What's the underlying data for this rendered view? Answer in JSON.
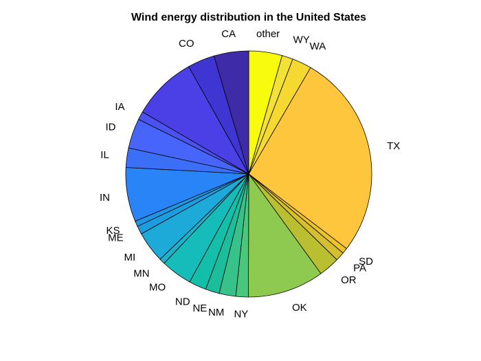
{
  "chart_data": {
    "type": "pie",
    "title": "Wind energy distribution in the United States",
    "legend": "none",
    "slices": [
      {
        "label": "other",
        "value": 4.8,
        "color": "#F9FB0E"
      },
      {
        "label": "WY",
        "value": 1.6,
        "color": "#F3E137"
      },
      {
        "label": "WA",
        "value": 2.8,
        "color": "#F5D930"
      },
      {
        "label": "TX",
        "value": 29.6,
        "color": "#FEC63C"
      },
      {
        "label": "SD",
        "value": 0.8,
        "color": "#EDC22B"
      },
      {
        "label": "PA",
        "value": 1.3,
        "color": "#D5BF30"
      },
      {
        "label": "OR",
        "value": 3.0,
        "color": "#BABF31"
      },
      {
        "label": "OK",
        "value": 11.0,
        "color": "#8FCA50"
      },
      {
        "label": "NY",
        "value": 1.8,
        "color": "#4BC77D"
      },
      {
        "label": "NM",
        "value": 2.4,
        "color": "#36C288"
      },
      {
        "label": "NE",
        "value": 2.0,
        "color": "#1CBD9B"
      },
      {
        "label": "ND",
        "value": 2.5,
        "color": "#14BFAA"
      },
      {
        "label": "MO",
        "value": 4.5,
        "color": "#16BCB9"
      },
      {
        "label": "MN",
        "value": 0.8,
        "color": "#1DB3CE"
      },
      {
        "label": "MI",
        "value": 4.5,
        "color": "#1EAAD9"
      },
      {
        "label": "ME",
        "value": 1.2,
        "color": "#1C9DE2"
      },
      {
        "label": "KS",
        "value": 0.8,
        "color": "#2394E2"
      },
      {
        "label": "IN",
        "value": 7.8,
        "color": "#2984F7"
      },
      {
        "label": "IL",
        "value": 2.8,
        "color": "#3B6FF7"
      },
      {
        "label": "ID",
        "value": 4.3,
        "color": "#4765FA"
      },
      {
        "label": "IA",
        "value": 1.2,
        "color": "#4A53EF"
      },
      {
        "label": "",
        "value": 9.3,
        "color": "#4A40E6"
      },
      {
        "label": "CO",
        "value": 3.9,
        "color": "#3F35D2"
      },
      {
        "label": "CA",
        "value": 5.0,
        "color": "#3E2BA8"
      }
    ]
  }
}
